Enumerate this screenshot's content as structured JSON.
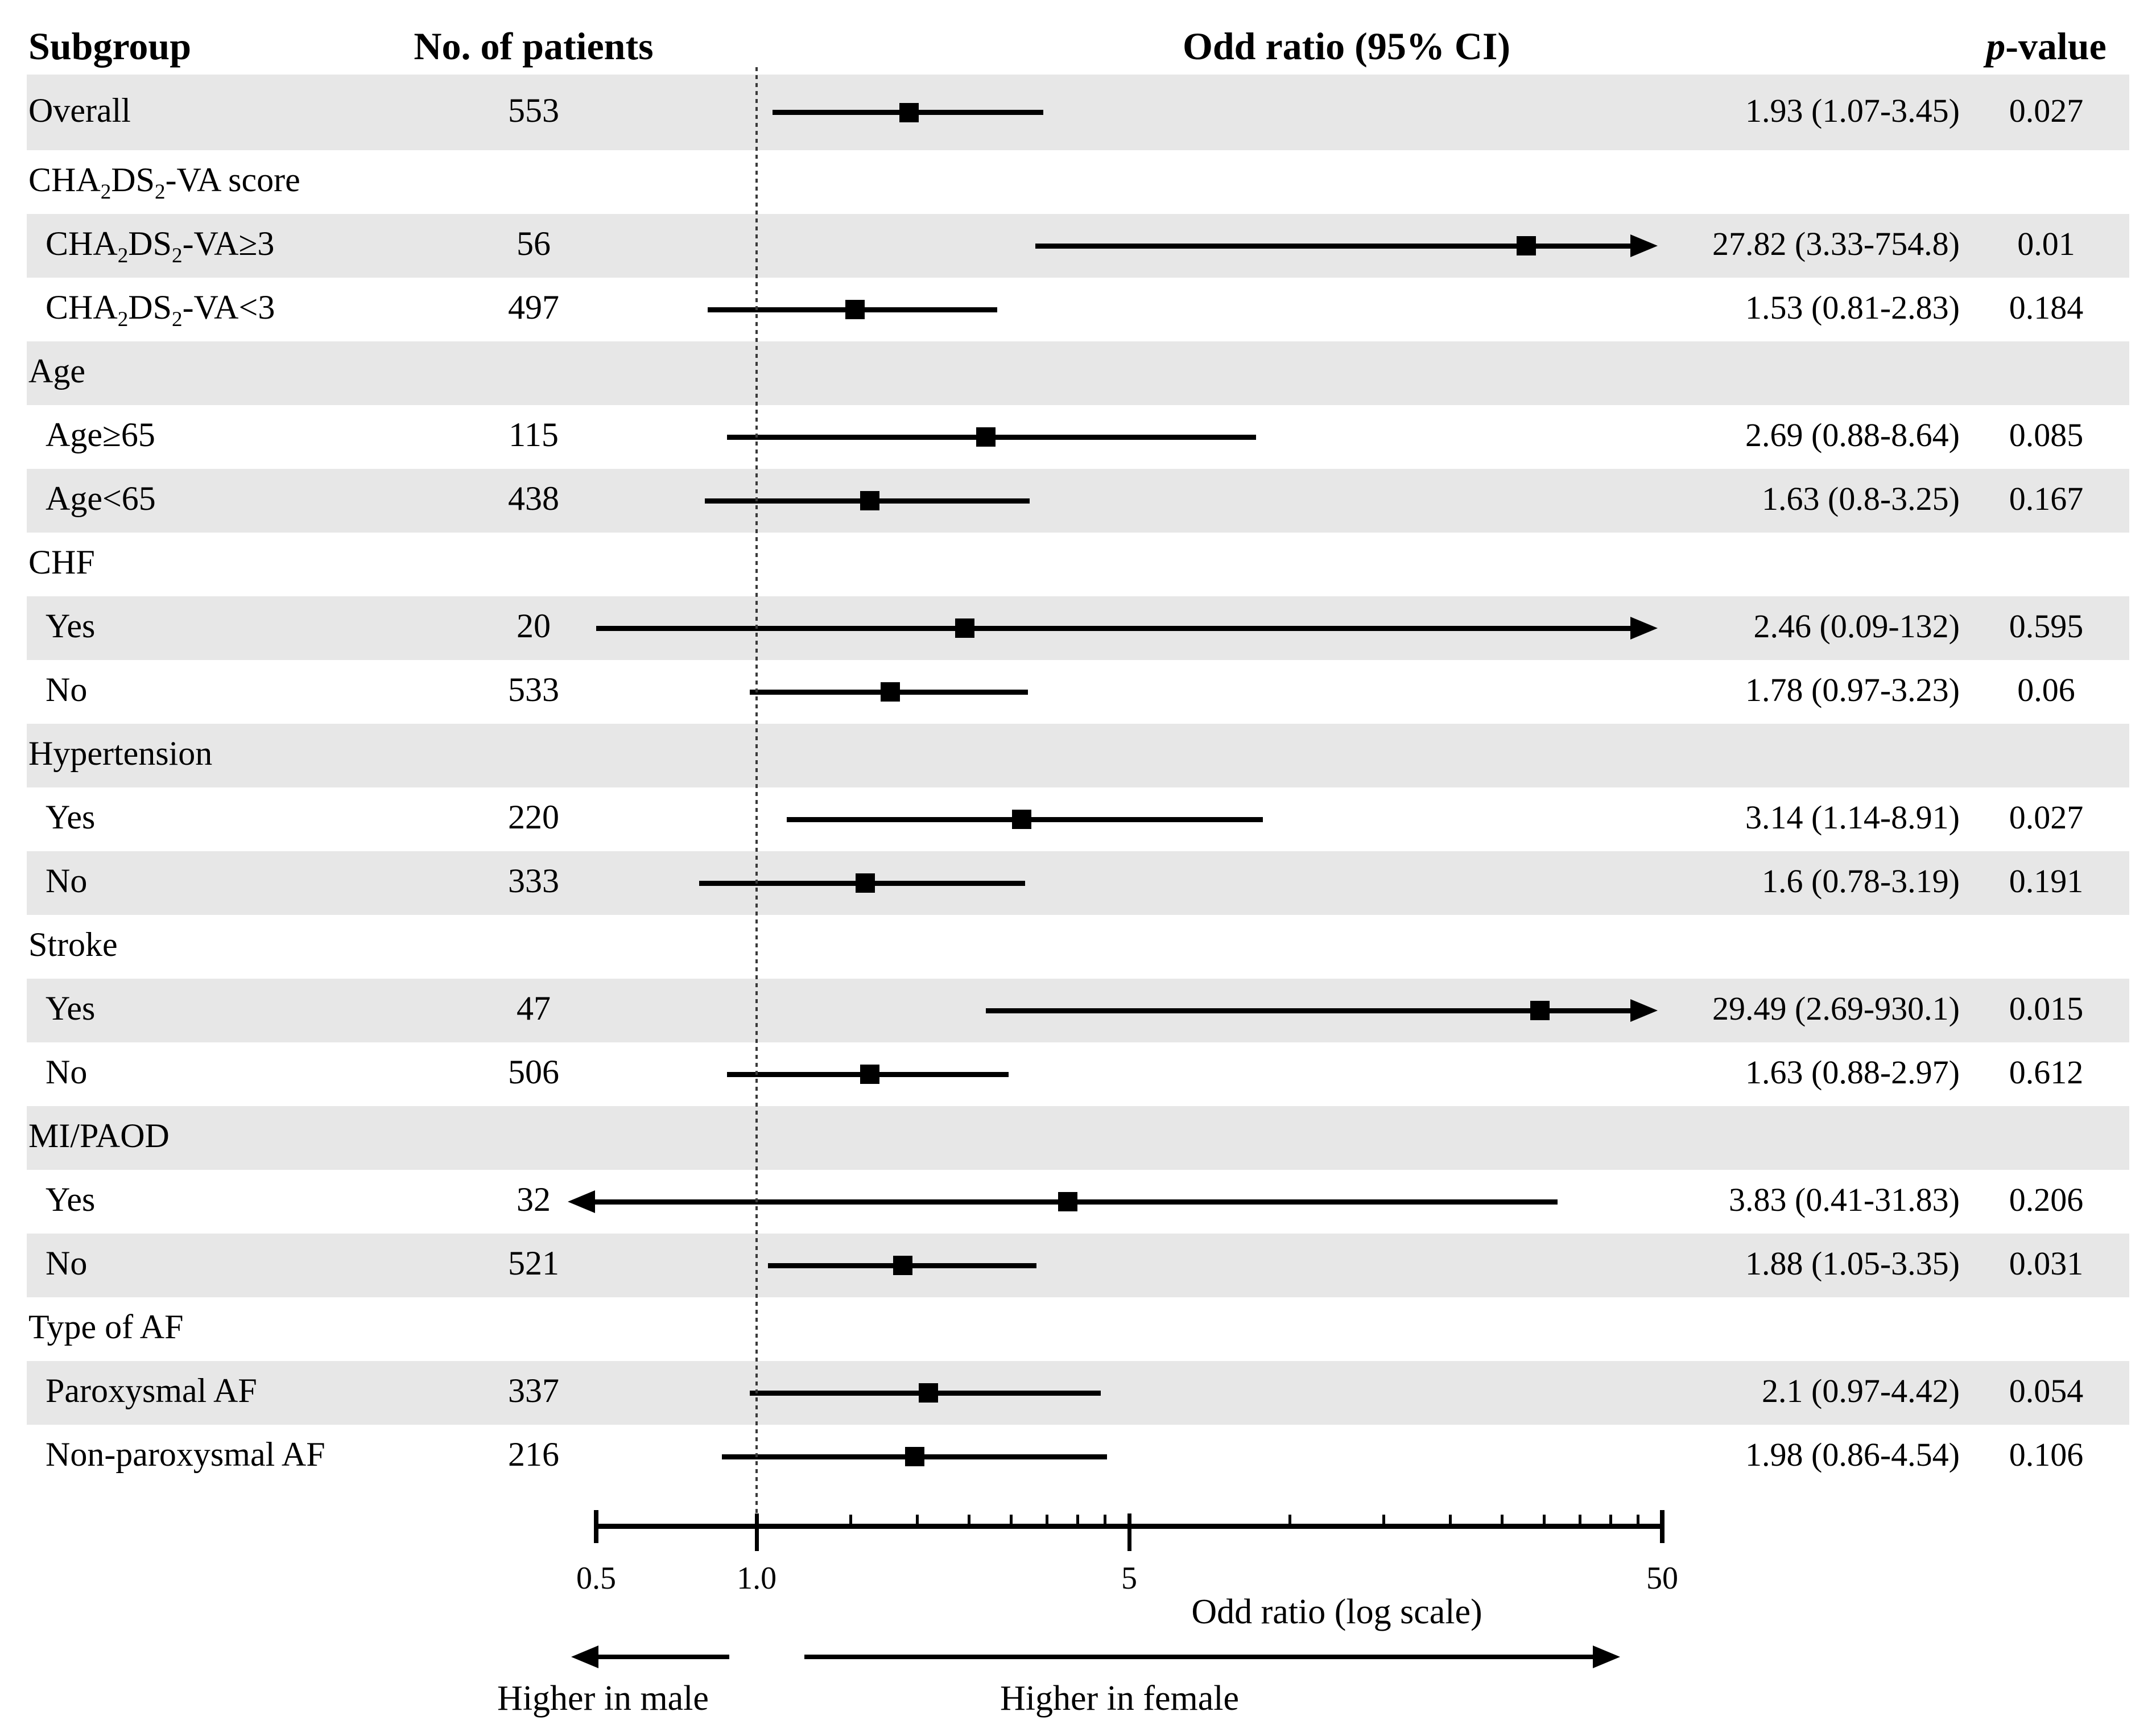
{
  "header": {
    "subgroup": "Subgroup",
    "n_patients": "No. of patients",
    "odds_ratio": "Odd ratio (95% CI)",
    "p_italic": "p",
    "p_rest": "-value"
  },
  "colors": {
    "band_shaded": "#e7e7e7",
    "band_plain": "#ffffff",
    "marker": "#000000",
    "text": "#000000"
  },
  "chart_data": {
    "type": "forest",
    "x_axis": {
      "scale": "log",
      "label": "Odd ratio (log scale)",
      "min": 0.5,
      "max": 50,
      "ref_line": 1.0,
      "ticks": [
        {
          "value": 0.5,
          "label": "0.5"
        },
        {
          "value": 1.0,
          "label": "1.0"
        },
        {
          "value": 5,
          "label": "5"
        },
        {
          "value": 50,
          "label": "50"
        }
      ],
      "minor_ticks": [
        1.5,
        2,
        2.5,
        3,
        3.5,
        4,
        4.5,
        10,
        15,
        20,
        25,
        30,
        35,
        40,
        45
      ]
    },
    "direction_labels": {
      "left": "Higher in male",
      "right": "Higher in female"
    },
    "rows": [
      {
        "kind": "data",
        "label": "Overall",
        "indent": false,
        "n": "553",
        "or": 1.93,
        "ci_lo": 1.07,
        "ci_hi": 3.45,
        "or_text": "1.93 (1.07-3.45)",
        "p": "0.027",
        "shaded": true,
        "arrow_left": false,
        "arrow_right": false
      },
      {
        "kind": "section",
        "label": "CHA₂DS₂-VA score",
        "shaded": false
      },
      {
        "kind": "data",
        "label": "CHA₂DS₂-VA≥3",
        "indent": true,
        "n": "56",
        "or": 27.82,
        "ci_lo": 3.33,
        "ci_hi": 754.8,
        "or_text": "27.82 (3.33-754.8)",
        "p": "0.01",
        "shaded": true,
        "arrow_left": false,
        "arrow_right": true
      },
      {
        "kind": "data",
        "label": "CHA₂DS₂-VA<3",
        "indent": true,
        "n": "497",
        "or": 1.53,
        "ci_lo": 0.81,
        "ci_hi": 2.83,
        "or_text": "1.53 (0.81-2.83)",
        "p": "0.184",
        "shaded": false,
        "arrow_left": false,
        "arrow_right": false
      },
      {
        "kind": "section",
        "label": "Age",
        "shaded": true
      },
      {
        "kind": "data",
        "label": "Age≥65",
        "indent": true,
        "n": "115",
        "or": 2.69,
        "ci_lo": 0.88,
        "ci_hi": 8.64,
        "or_text": "2.69 (0.88-8.64)",
        "p": "0.085",
        "shaded": false,
        "arrow_left": false,
        "arrow_right": false
      },
      {
        "kind": "data",
        "label": "Age<65",
        "indent": true,
        "n": "438",
        "or": 1.63,
        "ci_lo": 0.8,
        "ci_hi": 3.25,
        "or_text": "1.63 (0.8-3.25)",
        "p": "0.167",
        "shaded": true,
        "arrow_left": false,
        "arrow_right": false
      },
      {
        "kind": "section",
        "label": "CHF",
        "shaded": false
      },
      {
        "kind": "data",
        "label": "Yes",
        "indent": true,
        "n": "20",
        "or": 2.46,
        "ci_lo": 0.09,
        "ci_hi": 132,
        "or_text": "2.46 (0.09-132)",
        "p": "0.595",
        "shaded": true,
        "arrow_left": false,
        "arrow_right": true
      },
      {
        "kind": "data",
        "label": "No",
        "indent": true,
        "n": "533",
        "or": 1.78,
        "ci_lo": 0.97,
        "ci_hi": 3.23,
        "or_text": "1.78 (0.97-3.23)",
        "p": "0.06",
        "shaded": false,
        "arrow_left": false,
        "arrow_right": false
      },
      {
        "kind": "section",
        "label": "Hypertension",
        "shaded": true
      },
      {
        "kind": "data",
        "label": "Yes",
        "indent": true,
        "n": "220",
        "or": 3.14,
        "ci_lo": 1.14,
        "ci_hi": 8.91,
        "or_text": "3.14 (1.14-8.91)",
        "p": "0.027",
        "shaded": false,
        "arrow_left": false,
        "arrow_right": false
      },
      {
        "kind": "data",
        "label": "No",
        "indent": true,
        "n": "333",
        "or": 1.6,
        "ci_lo": 0.78,
        "ci_hi": 3.19,
        "or_text": "1.6 (0.78-3.19)",
        "p": "0.191",
        "shaded": true,
        "arrow_left": false,
        "arrow_right": false
      },
      {
        "kind": "section",
        "label": "Stroke",
        "shaded": false
      },
      {
        "kind": "data",
        "label": "Yes",
        "indent": true,
        "n": "47",
        "or": 29.49,
        "ci_lo": 2.69,
        "ci_hi": 930.1,
        "or_text": "29.49 (2.69-930.1)",
        "p": "0.015",
        "shaded": true,
        "arrow_left": false,
        "arrow_right": true
      },
      {
        "kind": "data",
        "label": "No",
        "indent": true,
        "n": "506",
        "or": 1.63,
        "ci_lo": 0.88,
        "ci_hi": 2.97,
        "or_text": "1.63 (0.88-2.97)",
        "p": "0.612",
        "shaded": false,
        "arrow_left": false,
        "arrow_right": false
      },
      {
        "kind": "section",
        "label": "MI/PAOD",
        "shaded": true
      },
      {
        "kind": "data",
        "label": "Yes",
        "indent": true,
        "n": "32",
        "or": 3.83,
        "ci_lo": 0.41,
        "ci_hi": 31.83,
        "or_text": "3.83 (0.41-31.83)",
        "p": "0.206",
        "shaded": false,
        "arrow_left": true,
        "arrow_right": false
      },
      {
        "kind": "data",
        "label": "No",
        "indent": true,
        "n": "521",
        "or": 1.88,
        "ci_lo": 1.05,
        "ci_hi": 3.35,
        "or_text": "1.88 (1.05-3.35)",
        "p": "0.031",
        "shaded": true,
        "arrow_left": false,
        "arrow_right": false
      },
      {
        "kind": "section",
        "label": "Type of AF",
        "shaded": false
      },
      {
        "kind": "data",
        "label": "Paroxysmal AF",
        "indent": true,
        "n": "337",
        "or": 2.1,
        "ci_lo": 0.97,
        "ci_hi": 4.42,
        "or_text": "2.1 (0.97-4.42)",
        "p": "0.054",
        "shaded": true,
        "arrow_left": false,
        "arrow_right": false
      },
      {
        "kind": "data",
        "label": "Non-paroxysmal AF",
        "indent": true,
        "n": "216",
        "or": 1.98,
        "ci_lo": 0.86,
        "ci_hi": 4.54,
        "or_text": "1.98 (0.86-4.54)",
        "p": "0.106",
        "shaded": false,
        "arrow_left": false,
        "arrow_right": false
      }
    ]
  }
}
